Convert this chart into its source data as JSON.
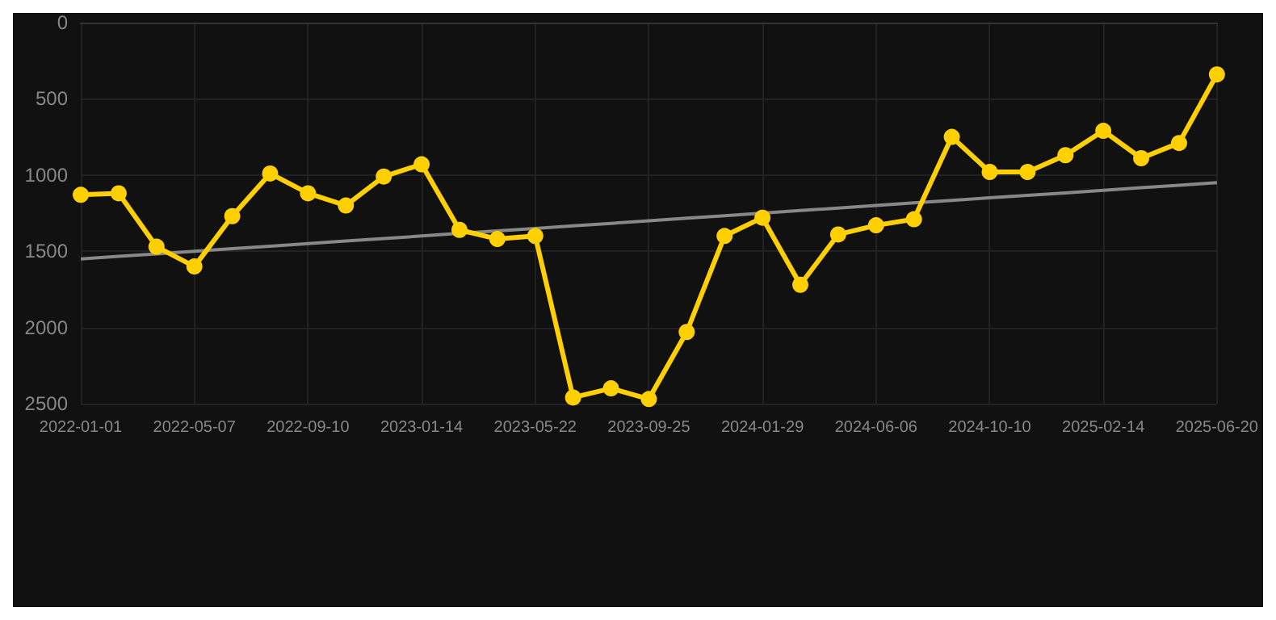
{
  "chart_data": {
    "type": "line",
    "categories": [
      "2022-01-01",
      null,
      null,
      "2022-05-07",
      null,
      null,
      "2022-09-10",
      null,
      null,
      "2023-01-14",
      null,
      null,
      "2023-05-22",
      null,
      null,
      "2023-09-25",
      null,
      null,
      "2024-01-29",
      null,
      null,
      "2024-06-06",
      null,
      null,
      "2024-10-10",
      null,
      null,
      "2025-02-14",
      null,
      null,
      "2025-06-20"
    ],
    "series": [
      {
        "color": "#ffd000",
        "values": [
          1130,
          1120,
          1470,
          1600,
          1270,
          990,
          1120,
          1200,
          1010,
          930,
          1360,
          1420,
          1400,
          2460,
          2400,
          2470,
          2030,
          1400,
          1280,
          1720,
          1390,
          1330,
          1290,
          750,
          980,
          980,
          870,
          710,
          890,
          790,
          340
        ]
      },
      {
        "type": "line",
        "color": "#888888",
        "marker": "none",
        "values": [
          1550,
          1533,
          1517,
          1500,
          1483,
          1467,
          1450,
          1433,
          1417,
          1400,
          1383,
          1367,
          1350,
          1333,
          1317,
          1300,
          1283,
          1267,
          1250,
          1233,
          1217,
          1200,
          1183,
          1167,
          1150,
          1133,
          1117,
          1100,
          1083,
          1067,
          1050
        ]
      }
    ],
    "ylim": [
      2500,
      0
    ],
    "yticks": [
      0,
      500,
      1000,
      1500,
      2000,
      2500
    ],
    "grid": true,
    "marker": "circle",
    "line_style": "solid"
  }
}
